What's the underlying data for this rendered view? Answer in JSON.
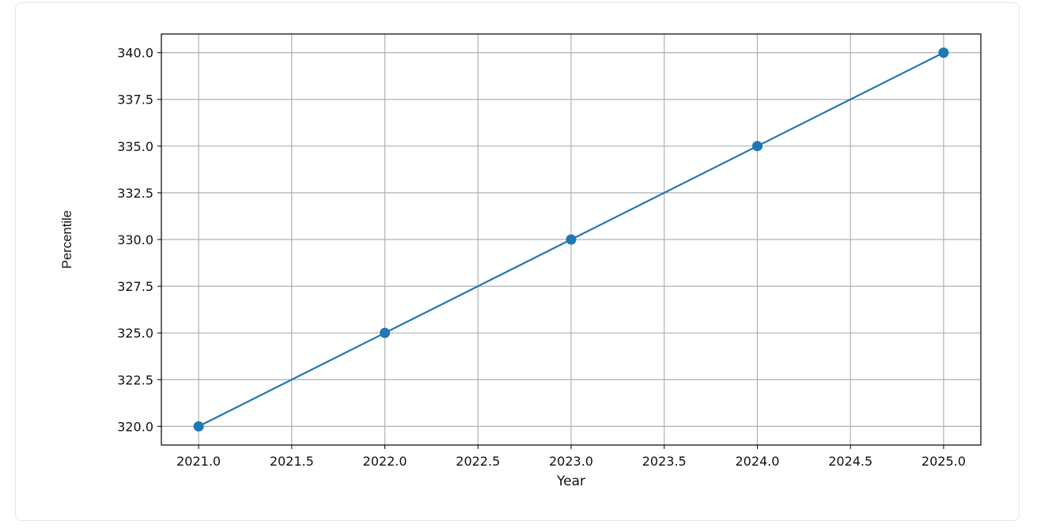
{
  "chart_data": {
    "type": "line",
    "title": "",
    "xlabel": "Year",
    "ylabel": "Percentile",
    "x": [
      2021,
      2022,
      2023,
      2024,
      2025
    ],
    "series": [
      {
        "values": [
          320,
          325,
          330,
          335,
          340
        ],
        "color": "#1f77b4",
        "marker": "circle"
      }
    ],
    "xlim": [
      2020.8,
      2025.2
    ],
    "ylim": [
      319.0,
      341.0
    ],
    "xticks": [
      "2021.0",
      "2021.5",
      "2022.0",
      "2022.5",
      "2023.0",
      "2023.5",
      "2024.0",
      "2024.5",
      "2025.0"
    ],
    "yticks": [
      "320.0",
      "322.5",
      "325.0",
      "327.5",
      "330.0",
      "332.5",
      "335.0",
      "337.5",
      "340.0"
    ],
    "grid": true
  }
}
